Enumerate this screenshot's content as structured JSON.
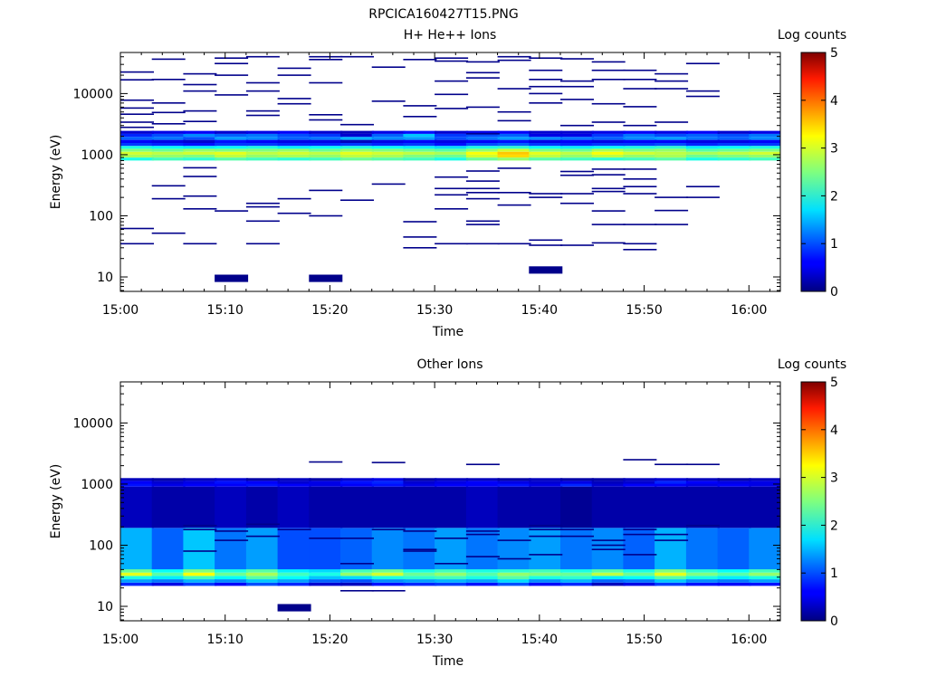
{
  "figure_title": "RPCICA160427T15.PNG",
  "chart_data": [
    {
      "type": "heatmap",
      "title": "H+ He++ Ions",
      "xlabel": "Time",
      "ylabel": "Energy (eV)",
      "y_scale": "log",
      "x_range": [
        "15:00",
        "16:03"
      ],
      "ylim": [
        5.8,
        47000
      ],
      "x_ticks": [
        "15:00",
        "15:10",
        "15:20",
        "15:30",
        "15:40",
        "15:50",
        "16:00"
      ],
      "y_ticks": [
        "10",
        "100",
        "1000",
        "10000"
      ],
      "colorbar": {
        "label": "Log counts",
        "range": [
          0,
          5
        ],
        "ticks": [
          "0",
          "1",
          "2",
          "3",
          "4",
          "5"
        ]
      },
      "columns_start": [
        "15:00",
        "15:03",
        "15:06",
        "15:09",
        "15:12",
        "15:15",
        "15:18",
        "15:21",
        "15:24",
        "15:27",
        "15:30",
        "15:33",
        "15:36",
        "15:39",
        "15:42",
        "15:45",
        "15:48",
        "15:51",
        "15:54",
        "15:57",
        "16:00"
      ],
      "column_width_min": 3.2,
      "band_energy_eV": [
        850,
        950,
        1060,
        1180,
        1320,
        1470,
        1650,
        1850,
        2070,
        2320
      ],
      "band_log_counts": [
        [
          2.0,
          2.7,
          2.9,
          2.5,
          2.0,
          0.9,
          0.6,
          1.1,
          0.8,
          0.4
        ],
        [
          2.2,
          2.6,
          2.8,
          2.4,
          1.9,
          0.8,
          0.5,
          1.2,
          1.0,
          0.5
        ],
        [
          2.1,
          2.5,
          2.9,
          2.6,
          1.8,
          0.7,
          0.4,
          1.0,
          1.3,
          0.6
        ],
        [
          2.3,
          2.8,
          3.0,
          2.5,
          1.9,
          0.9,
          0.7,
          1.4,
          1.1,
          0.4
        ],
        [
          2.2,
          2.6,
          2.8,
          2.5,
          2.0,
          0.9,
          0.6,
          1.3,
          1.2,
          0.5
        ],
        [
          2.1,
          2.7,
          2.9,
          2.6,
          1.8,
          0.8,
          0.5,
          1.1,
          1.0,
          0.6
        ],
        [
          2.2,
          2.6,
          2.8,
          2.4,
          1.9,
          0.8,
          0.5,
          1.2,
          0.9,
          0.4
        ],
        [
          2.4,
          2.8,
          3.0,
          2.6,
          2.0,
          0.9,
          0.3,
          1.5,
          0.4,
          0.3
        ],
        [
          2.3,
          2.7,
          2.9,
          2.5,
          1.9,
          0.8,
          0.5,
          1.3,
          1.1,
          0.5
        ],
        [
          2.2,
          2.5,
          2.8,
          2.4,
          1.8,
          0.9,
          0.6,
          1.4,
          1.6,
          0.7
        ],
        [
          2.0,
          2.4,
          2.7,
          2.3,
          1.7,
          0.7,
          0.5,
          1.0,
          0.9,
          0.4
        ],
        [
          2.4,
          2.9,
          3.1,
          2.6,
          2.0,
          1.0,
          0.6,
          1.2,
          1.0,
          0.5
        ],
        [
          2.6,
          3.3,
          3.4,
          2.9,
          2.1,
          1.1,
          0.7,
          1.4,
          1.1,
          0.6
        ],
        [
          2.3,
          2.8,
          3.0,
          2.5,
          1.9,
          0.9,
          0.5,
          1.3,
          0.5,
          0.4
        ],
        [
          2.2,
          2.6,
          2.8,
          2.4,
          1.8,
          0.8,
          0.6,
          1.2,
          0.5,
          0.4
        ],
        [
          2.1,
          2.8,
          3.1,
          2.7,
          1.9,
          0.9,
          0.5,
          1.1,
          0.9,
          0.5
        ],
        [
          2.2,
          2.6,
          2.9,
          2.5,
          2.0,
          0.9,
          0.6,
          1.3,
          1.2,
          0.6
        ],
        [
          2.3,
          2.7,
          2.8,
          2.6,
          2.1,
          1.0,
          0.6,
          1.4,
          1.0,
          0.5
        ],
        [
          2.0,
          2.4,
          2.7,
          2.3,
          1.8,
          0.8,
          0.5,
          1.2,
          1.1,
          0.6
        ],
        [
          2.1,
          2.5,
          2.8,
          2.4,
          1.9,
          0.9,
          0.5,
          1.1,
          1.0,
          0.4
        ],
        [
          2.2,
          2.6,
          2.9,
          2.5,
          2.0,
          0.9,
          0.6,
          1.3,
          1.2,
          0.5
        ]
      ],
      "sparse_cells": [
        {
          "column": 0,
          "energy_eV": [
            22500,
            16800,
            7800,
            5800,
            4600,
            3400,
            2800,
            62,
            35
          ]
        },
        {
          "column": 1,
          "energy_eV": [
            36500,
            17000,
            7000,
            4900,
            3200,
            310,
            190,
            52
          ]
        },
        {
          "column": 2,
          "energy_eV": [
            21000,
            14000,
            11000,
            5200,
            3500,
            610,
            440,
            210,
            130,
            35
          ]
        },
        {
          "column": 3,
          "energy_eV": [
            38000,
            31000,
            20000,
            9500,
            120,
            9.5
          ]
        },
        {
          "column": 4,
          "energy_eV": [
            40000,
            15000,
            11000,
            5200,
            4400,
            160,
            140,
            82,
            35
          ]
        },
        {
          "column": 5,
          "energy_eV": [
            26000,
            20000,
            8300,
            6800,
            190,
            110
          ]
        },
        {
          "column": 6,
          "energy_eV": [
            40000,
            36000,
            15000,
            4500,
            3700,
            260,
            100,
            9.5
          ]
        },
        {
          "column": 7,
          "energy_eV": [
            40000,
            3100,
            180
          ]
        },
        {
          "column": 8,
          "energy_eV": [
            27000,
            7500,
            330
          ]
        },
        {
          "column": 9,
          "energy_eV": [
            36000,
            6300,
            4200,
            80,
            45,
            30
          ]
        },
        {
          "column": 10,
          "energy_eV": [
            38000,
            34000,
            16000,
            9700,
            5700,
            430,
            280,
            220,
            130,
            35
          ]
        },
        {
          "column": 11,
          "energy_eV": [
            33000,
            22000,
            18000,
            6000,
            2200,
            540,
            370,
            280,
            240,
            190,
            82,
            72,
            35
          ]
        },
        {
          "column": 12,
          "energy_eV": [
            40000,
            35000,
            12000,
            5000,
            3600,
            600,
            240,
            150,
            35
          ]
        },
        {
          "column": 13,
          "energy_eV": [
            38000,
            24000,
            17000,
            13000,
            10000,
            7000,
            230,
            200,
            40,
            33,
            13
          ]
        },
        {
          "column": 14,
          "energy_eV": [
            37000,
            16000,
            13000,
            8000,
            3000,
            530,
            460,
            230,
            160,
            33
          ]
        },
        {
          "column": 15,
          "energy_eV": [
            33000,
            24000,
            17000,
            6800,
            3400,
            580,
            470,
            280,
            250,
            120,
            72,
            36
          ]
        },
        {
          "column": 16,
          "energy_eV": [
            24000,
            17000,
            12000,
            6100,
            3000,
            580,
            400,
            300,
            230,
            72,
            35,
            28
          ]
        },
        {
          "column": 17,
          "energy_eV": [
            21000,
            16000,
            12000,
            3400,
            200,
            122,
            72
          ]
        },
        {
          "column": 18,
          "energy_eV": [
            31000,
            11000,
            9000,
            300,
            200
          ]
        }
      ]
    },
    {
      "type": "heatmap",
      "title": "Other Ions",
      "xlabel": "Time",
      "ylabel": "Energy (eV)",
      "y_scale": "log",
      "x_range": [
        "15:00",
        "16:03"
      ],
      "ylim": [
        5.8,
        47000
      ],
      "x_ticks": [
        "15:00",
        "15:10",
        "15:20",
        "15:30",
        "15:40",
        "15:50",
        "16:00"
      ],
      "y_ticks": [
        "10",
        "100",
        "1000",
        "10000"
      ],
      "colorbar": {
        "label": "Log counts",
        "range": [
          0,
          5
        ],
        "ticks": [
          "0",
          "1",
          "2",
          "3",
          "4",
          "5"
        ]
      },
      "columns_start": [
        "15:00",
        "15:03",
        "15:06",
        "15:09",
        "15:12",
        "15:15",
        "15:18",
        "15:21",
        "15:24",
        "15:27",
        "15:30",
        "15:33",
        "15:36",
        "15:39",
        "15:42",
        "15:45",
        "15:48",
        "15:51",
        "15:54",
        "15:57",
        "16:00"
      ],
      "column_width_min": 3.2,
      "band_energy_eV": [
        23,
        26,
        29.5,
        33.5,
        38,
        43,
        860,
        960,
        1070,
        1190
      ],
      "band_log_counts": [
        [
          0.8,
          1.4,
          2.0,
          3.0,
          2.4,
          1.5,
          0.3,
          0.7,
          0.6,
          0.3
        ],
        [
          0.5,
          1.2,
          1.8,
          2.3,
          1.9,
          1.1,
          0.2,
          0.5,
          0.4,
          0.2
        ],
        [
          0.9,
          1.5,
          2.2,
          3.1,
          2.5,
          1.6,
          0.2,
          0.6,
          0.5,
          0.3
        ],
        [
          0.6,
          1.3,
          1.9,
          2.4,
          2.0,
          1.2,
          0.3,
          0.6,
          0.7,
          0.4
        ],
        [
          1.0,
          1.6,
          2.3,
          2.7,
          2.3,
          1.4,
          0.2,
          0.7,
          0.6,
          0.2
        ],
        [
          0.8,
          1.4,
          1.9,
          2.2,
          1.8,
          1.0,
          0.3,
          0.6,
          0.4,
          0.3
        ],
        [
          0.4,
          1.1,
          1.6,
          2.0,
          1.7,
          1.0,
          0.2,
          0.5,
          0.5,
          0.2
        ],
        [
          0.3,
          1.0,
          1.7,
          2.6,
          2.2,
          1.1,
          0.2,
          0.6,
          0.7,
          0.4
        ],
        [
          0.7,
          1.3,
          2.0,
          2.9,
          2.4,
          1.3,
          0.2,
          0.7,
          0.8,
          0.5
        ],
        [
          0.8,
          1.4,
          2.1,
          2.4,
          2.0,
          1.2,
          0.2,
          0.5,
          0.4,
          0.2
        ],
        [
          0.9,
          1.5,
          2.2,
          2.6,
          2.2,
          1.4,
          0.2,
          0.6,
          0.5,
          0.3
        ],
        [
          0.7,
          1.4,
          2.0,
          2.3,
          2.0,
          1.2,
          0.3,
          0.6,
          0.6,
          0.3
        ],
        [
          1.0,
          1.7,
          2.3,
          2.6,
          2.1,
          1.3,
          0.2,
          0.7,
          0.5,
          0.2
        ],
        [
          0.6,
          1.3,
          2.0,
          2.5,
          2.2,
          1.4,
          0.2,
          0.5,
          0.4,
          0.3
        ],
        [
          0.8,
          1.5,
          2.1,
          2.4,
          2.0,
          1.2,
          0.1,
          0.8,
          0.5,
          0.2
        ],
        [
          0.3,
          1.1,
          1.8,
          2.8,
          2.3,
          1.3,
          0.2,
          0.4,
          0.3,
          0.2
        ],
        [
          0.5,
          1.2,
          1.9,
          2.4,
          2.0,
          1.1,
          0.2,
          0.6,
          0.4,
          0.3
        ],
        [
          0.9,
          1.6,
          2.3,
          3.0,
          2.5,
          1.5,
          0.2,
          0.6,
          0.8,
          0.4
        ],
        [
          0.7,
          1.3,
          2.0,
          2.5,
          2.1,
          1.2,
          0.2,
          0.5,
          0.6,
          0.3
        ],
        [
          0.6,
          1.2,
          1.8,
          2.3,
          1.9,
          1.1,
          0.2,
          0.6,
          0.5,
          0.2
        ],
        [
          0.7,
          1.4,
          2.0,
          2.6,
          2.2,
          1.3,
          0.2,
          0.5,
          0.5,
          0.3
        ]
      ],
      "sparse_cells": [
        {
          "column": 2,
          "energy_eV": [
            210,
            180,
            80
          ]
        },
        {
          "column": 3,
          "energy_eV": [
            170,
            120
          ]
        },
        {
          "column": 4,
          "energy_eV": [
            220,
            140
          ]
        },
        {
          "column": 5,
          "energy_eV": [
            180,
            9.5
          ]
        },
        {
          "column": 6,
          "energy_eV": [
            2300,
            130
          ]
        },
        {
          "column": 7,
          "energy_eV": [
            130,
            50,
            18
          ]
        },
        {
          "column": 8,
          "energy_eV": [
            2250,
            180,
            18
          ]
        },
        {
          "column": 9,
          "energy_eV": [
            170,
            85,
            80
          ]
        },
        {
          "column": 10,
          "energy_eV": [
            130,
            50
          ]
        },
        {
          "column": 11,
          "energy_eV": [
            2100,
            170,
            150,
            65
          ]
        },
        {
          "column": 12,
          "energy_eV": [
            120,
            60
          ]
        },
        {
          "column": 13,
          "energy_eV": [
            210,
            180,
            140,
            70
          ]
        },
        {
          "column": 14,
          "energy_eV": [
            180,
            140
          ]
        },
        {
          "column": 15,
          "energy_eV": [
            120,
            100,
            85
          ]
        },
        {
          "column": 16,
          "energy_eV": [
            2500,
            180,
            150,
            70
          ]
        },
        {
          "column": 17,
          "energy_eV": [
            2100,
            150,
            120
          ]
        },
        {
          "column": 18,
          "energy_eV": [
            2100,
            210
          ]
        }
      ]
    }
  ]
}
